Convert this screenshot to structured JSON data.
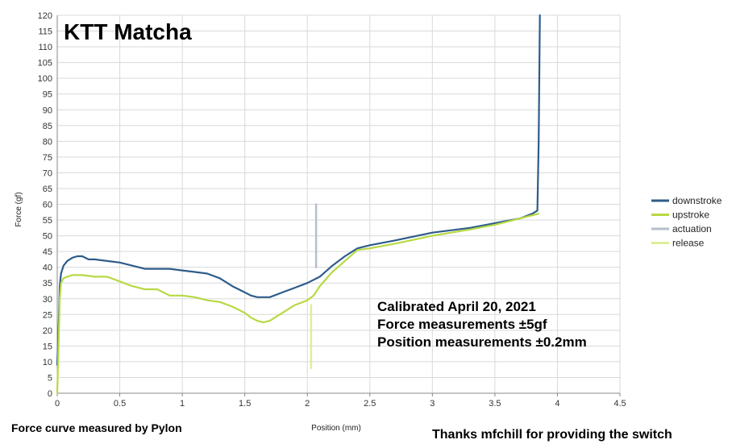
{
  "chart_data": {
    "type": "line",
    "title": "KTT Matcha",
    "xlabel": "Position (mm)",
    "ylabel": "Force (gf)",
    "xlim": [
      0,
      4.5
    ],
    "ylim": [
      0,
      120
    ],
    "xticks": [
      0,
      0.5,
      1,
      1.5,
      2,
      2.5,
      3,
      3.5,
      4,
      4.5
    ],
    "xtick_labels": [
      "0",
      "0.5",
      "1",
      "1.5",
      "2",
      "2.5",
      "3",
      "3.5",
      "4",
      "4.5"
    ],
    "yticks": [
      0,
      5,
      10,
      15,
      20,
      25,
      30,
      35,
      40,
      45,
      50,
      55,
      60,
      65,
      70,
      75,
      80,
      85,
      90,
      95,
      100,
      105,
      110,
      115,
      120
    ],
    "grid": true,
    "legend": "right",
    "series": [
      {
        "name": "downstroke",
        "color": "#2e5c8a",
        "x": [
          0.0,
          0.01,
          0.02,
          0.03,
          0.05,
          0.08,
          0.12,
          0.16,
          0.2,
          0.25,
          0.3,
          0.4,
          0.5,
          0.6,
          0.7,
          0.8,
          0.9,
          1.0,
          1.1,
          1.2,
          1.3,
          1.4,
          1.5,
          1.55,
          1.6,
          1.7,
          1.8,
          1.9,
          2.0,
          2.1,
          2.2,
          2.3,
          2.4,
          2.5,
          2.7,
          3.0,
          3.3,
          3.5,
          3.7,
          3.8,
          3.84,
          3.85,
          3.86
        ],
        "y": [
          9,
          20,
          34,
          38,
          40.5,
          42,
          43,
          43.5,
          43.5,
          42.5,
          42.5,
          42,
          41.5,
          40.5,
          39.5,
          39.5,
          39.5,
          39,
          38.5,
          38,
          36.5,
          34,
          32,
          31,
          30.5,
          30.5,
          32,
          33.5,
          35,
          37,
          40.5,
          43.5,
          46,
          47,
          48.5,
          51,
          52.5,
          54,
          55.5,
          57,
          58,
          80,
          120
        ]
      },
      {
        "name": "upstroke",
        "color": "#b7d944",
        "x": [
          0.0,
          0.01,
          0.02,
          0.03,
          0.05,
          0.08,
          0.12,
          0.16,
          0.2,
          0.3,
          0.4,
          0.5,
          0.6,
          0.7,
          0.8,
          0.9,
          1.0,
          1.1,
          1.2,
          1.3,
          1.4,
          1.5,
          1.55,
          1.6,
          1.65,
          1.7,
          1.8,
          1.9,
          2.0,
          2.05,
          2.1,
          2.2,
          2.3,
          2.4,
          2.5,
          2.7,
          3.0,
          3.3,
          3.5,
          3.7,
          3.85
        ],
        "y": [
          0,
          15,
          30,
          35,
          36.5,
          37,
          37.5,
          37.5,
          37.5,
          37,
          37,
          35.5,
          34,
          33,
          33,
          31,
          31,
          30.5,
          29.5,
          29,
          27.5,
          25.5,
          24,
          23,
          22.5,
          23,
          25.5,
          28,
          29.5,
          31,
          34,
          38.5,
          42,
          45.5,
          46,
          47.5,
          50,
          52,
          53.5,
          55.5,
          57
        ]
      },
      {
        "name": "actuation",
        "color": "#b5bfcc",
        "x": [
          2.07,
          2.07
        ],
        "y": [
          40,
          60
        ]
      },
      {
        "name": "release",
        "color": "#dcef9a",
        "x": [
          2.03,
          2.03
        ],
        "y": [
          8,
          28
        ]
      }
    ],
    "annotations": [
      "Calibrated April 20, 2021",
      "Force measurements ±5gf",
      "Position measurements ±0.2mm"
    ]
  },
  "footer": {
    "left": "Force curve measured by Pylon",
    "right": "Thanks mfchill for providing the switch"
  }
}
